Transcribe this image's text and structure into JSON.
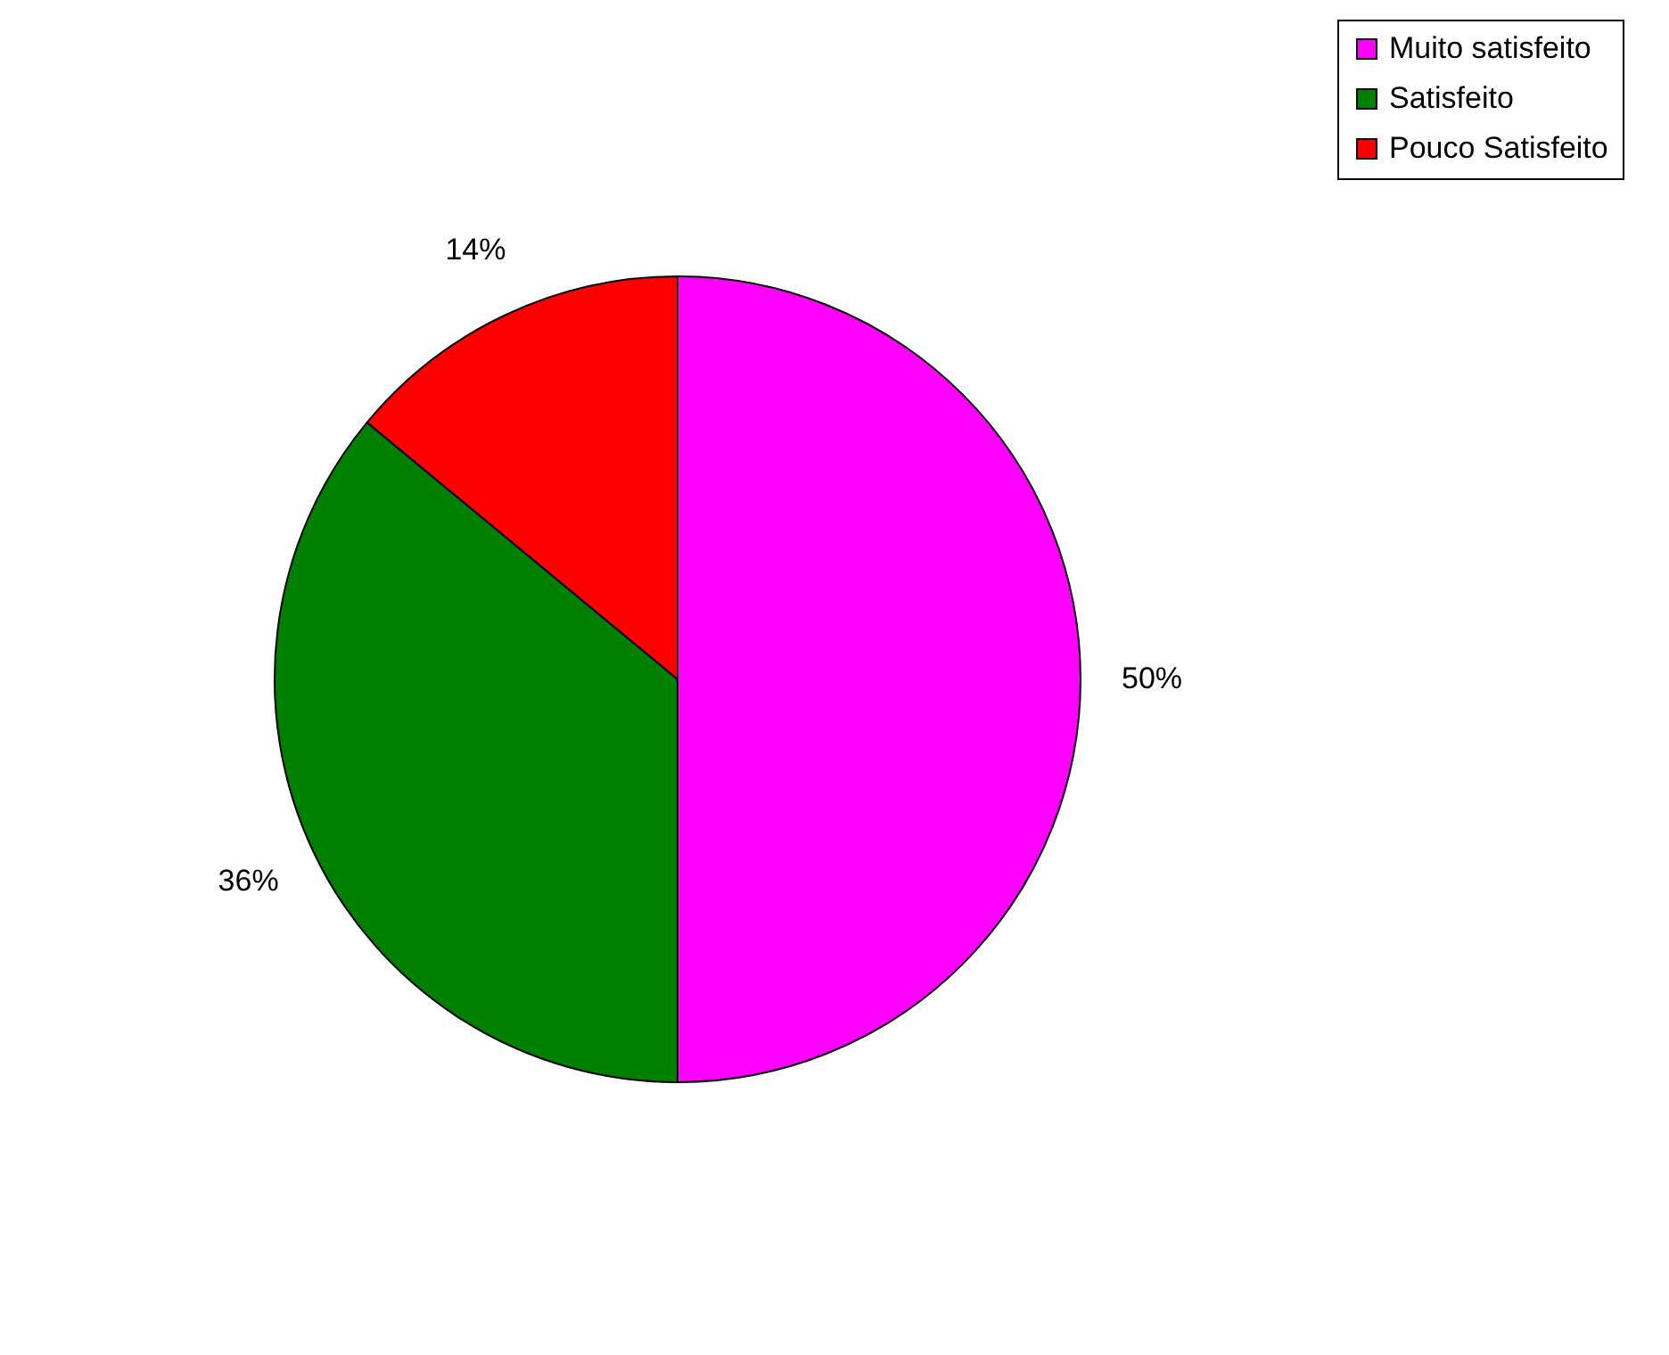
{
  "chart_data": {
    "type": "pie",
    "categories": [
      "Muito satisfeito",
      "Satisfeito",
      "Pouco Satisfeito"
    ],
    "values": [
      50,
      36,
      14
    ],
    "colors": [
      "#ff00ff",
      "#008000",
      "#ff0000"
    ],
    "value_labels": [
      "50%",
      "36%",
      "14%"
    ],
    "legend": "right"
  }
}
